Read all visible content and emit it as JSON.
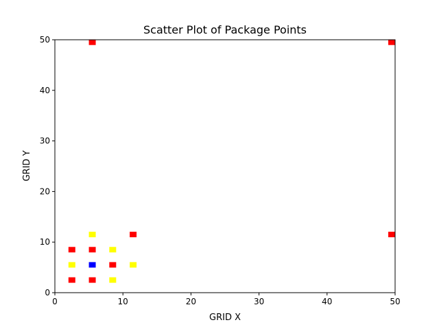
{
  "chart_data": {
    "type": "scatter",
    "title": "Scatter Plot of Package Points",
    "xlabel": "GRID X",
    "ylabel": "GRID Y",
    "xlim": [
      0,
      50
    ],
    "ylim": [
      0,
      50
    ],
    "xticks": [
      "0",
      "10",
      "20",
      "30",
      "40",
      "50"
    ],
    "yticks": [
      "0",
      "10",
      "20",
      "30",
      "40",
      "50"
    ],
    "grid": false,
    "marker": "square",
    "colors": {
      "red": "#ff0000",
      "yellow": "#ffff00",
      "blue": "#0000ff"
    },
    "points": [
      {
        "x": 2.5,
        "y": 2.5,
        "color": "red"
      },
      {
        "x": 2.5,
        "y": 5.5,
        "color": "yellow"
      },
      {
        "x": 2.5,
        "y": 8.5,
        "color": "red"
      },
      {
        "x": 5.5,
        "y": 2.5,
        "color": "red"
      },
      {
        "x": 5.5,
        "y": 5.5,
        "color": "blue"
      },
      {
        "x": 5.5,
        "y": 8.5,
        "color": "red"
      },
      {
        "x": 5.5,
        "y": 11.5,
        "color": "yellow"
      },
      {
        "x": 5.5,
        "y": 49.5,
        "color": "red"
      },
      {
        "x": 8.5,
        "y": 2.5,
        "color": "yellow"
      },
      {
        "x": 8.5,
        "y": 5.5,
        "color": "red"
      },
      {
        "x": 8.5,
        "y": 8.5,
        "color": "yellow"
      },
      {
        "x": 11.5,
        "y": 5.5,
        "color": "yellow"
      },
      {
        "x": 11.5,
        "y": 11.5,
        "color": "red"
      },
      {
        "x": 49.5,
        "y": 11.5,
        "color": "red"
      },
      {
        "x": 49.5,
        "y": 49.5,
        "color": "red"
      }
    ]
  }
}
